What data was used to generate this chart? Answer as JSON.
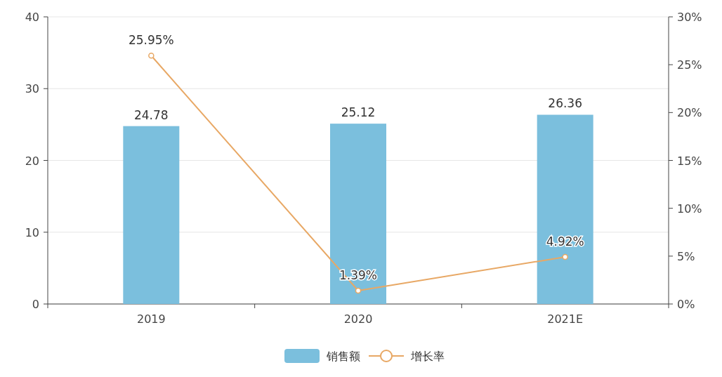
{
  "chart_data": {
    "type": "bar",
    "categories": [
      "2019",
      "2020",
      "2021E"
    ],
    "series": [
      {
        "name": "销售额",
        "color": "#7bbfdd",
        "values": [
          24.78,
          25.12,
          26.36
        ]
      },
      {
        "name": "增长率",
        "type": "line",
        "axis": "y2",
        "color": "#e8a865",
        "marker": "circle",
        "values": [
          25.95,
          1.39,
          4.92
        ],
        "value_labels": [
          "25.95%",
          "1.39%",
          "4.92%"
        ]
      }
    ],
    "ylim": [
      0,
      40
    ],
    "yticks": [
      0,
      10,
      20,
      30,
      40
    ],
    "y2lim": [
      0,
      30
    ],
    "y2ticks": [
      {
        "value": 0,
        "label": "0%"
      },
      {
        "value": 5,
        "label": "5%"
      },
      {
        "value": 10,
        "label": "10%"
      },
      {
        "value": 15,
        "label": "15%"
      },
      {
        "value": 20,
        "label": "20%"
      },
      {
        "value": 25,
        "label": "25%"
      },
      {
        "value": 30,
        "label": "30%"
      }
    ],
    "grid": "y",
    "legend": "bottom",
    "data_labels": true
  }
}
